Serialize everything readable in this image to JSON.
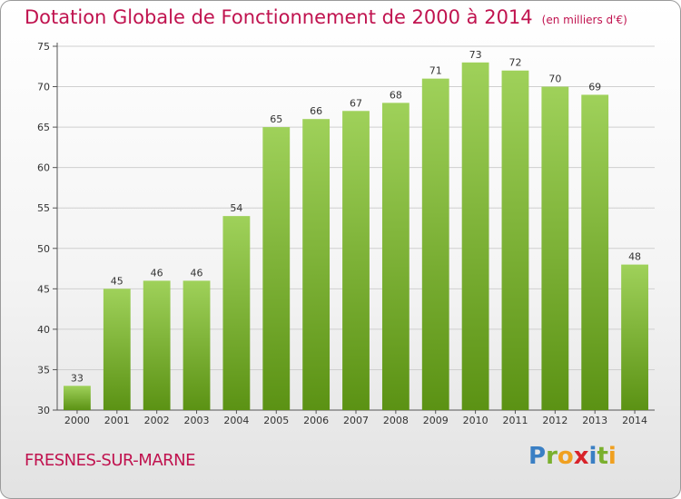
{
  "title": "Dotation Globale de Fonctionnement de 2000 à 2014",
  "unit_note": "(en milliers d'€)",
  "commune": "FRESNES-SUR-MARNE",
  "logo": {
    "text": "Proxiti",
    "letters": [
      {
        "ch": "P",
        "color": "#3a7fc4"
      },
      {
        "ch": "r",
        "color": "#7ab02e"
      },
      {
        "ch": "o",
        "color": "#f0a020"
      },
      {
        "ch": "x",
        "color": "#d8232a"
      },
      {
        "ch": "i",
        "color": "#3a7fc4"
      },
      {
        "ch": "t",
        "color": "#7ab02e"
      },
      {
        "ch": "i",
        "color": "#f0a020"
      }
    ]
  },
  "colors": {
    "title": "#c0134f",
    "bar_top": "#9fd15a",
    "bar_bottom": "#5b9214",
    "grid": "#cfcfcf",
    "axis": "#555555"
  },
  "chart_data": {
    "type": "bar",
    "categories": [
      "2000",
      "2001",
      "2002",
      "2003",
      "2004",
      "2005",
      "2006",
      "2007",
      "2008",
      "2009",
      "2010",
      "2011",
      "2012",
      "2013",
      "2014"
    ],
    "values": [
      33,
      45,
      46,
      46,
      54,
      65,
      66,
      67,
      68,
      71,
      73,
      72,
      70,
      69,
      48
    ],
    "title": "Dotation Globale de Fonctionnement de 2000 à 2014",
    "xlabel": "",
    "ylabel": "",
    "ylim": [
      30,
      75
    ],
    "yticks": [
      30,
      35,
      40,
      45,
      50,
      55,
      60,
      65,
      70,
      75
    ],
    "grid": true,
    "data_labels": true
  }
}
